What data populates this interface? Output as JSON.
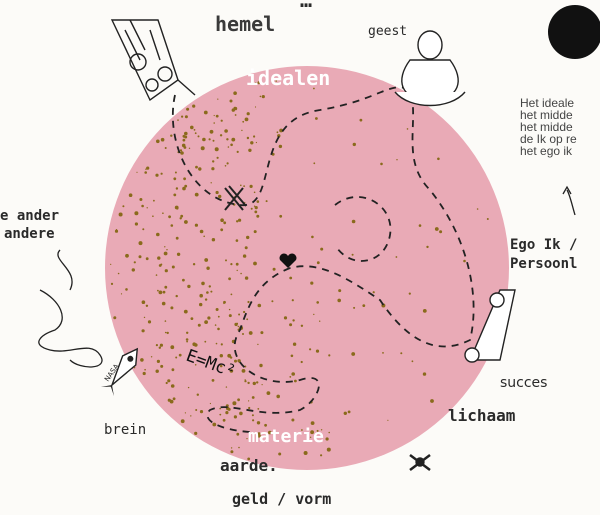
{
  "labels": {
    "top_cut": "…",
    "hemel": "hemel",
    "geest": "geest",
    "idealen": "idealen",
    "ander_line1": "e ander",
    "ander_line2": "andere",
    "ego_line1": "Ego Ik /",
    "ego_line2": "Persoonl",
    "succes": "succes",
    "lichaam": "lichaam",
    "brein": "brein",
    "materie": "materie",
    "aarde": "aarde.",
    "geld_vorm": "geld / vorm",
    "formula": "E=Mc²",
    "rocket_text": "NASA"
  },
  "note_lines": [
    "Het ideale",
    "het midde",
    "het midde",
    "de Ik op re",
    "het ego ik"
  ],
  "colors": {
    "circle": "#e9aab6",
    "speckle": "#8a6a1c",
    "ink": "#2a2a2a",
    "moon": "#111111",
    "idealen_text": "#ffffff"
  }
}
